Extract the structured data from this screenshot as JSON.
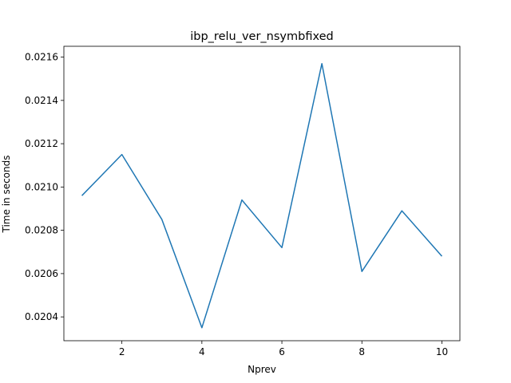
{
  "chart_data": {
    "type": "line",
    "title": "ibp_relu_ver_nsymbfixed",
    "xlabel": "Nprev",
    "ylabel": "Time in seconds",
    "xlim": [
      0.55,
      10.45
    ],
    "ylim": [
      0.02029,
      0.02165
    ],
    "x_ticks": [
      2,
      4,
      6,
      8,
      10
    ],
    "x_tick_labels": [
      "2",
      "4",
      "6",
      "8",
      "10"
    ],
    "y_ticks": [
      0.0204,
      0.0206,
      0.0208,
      0.021,
      0.0212,
      0.0214,
      0.0216
    ],
    "y_tick_labels": [
      "0.0204",
      "0.0206",
      "0.0208",
      "0.0210",
      "0.0212",
      "0.0214",
      "0.0216"
    ],
    "grid": false,
    "series": [
      {
        "color": "#1f77b4",
        "x": [
          1,
          2,
          3,
          4,
          5,
          6,
          7,
          8,
          9,
          10
        ],
        "values": [
          0.02096,
          0.02115,
          0.02085,
          0.02035,
          0.02094,
          0.02072,
          0.02157,
          0.02061,
          0.02089,
          0.02068
        ]
      }
    ]
  }
}
